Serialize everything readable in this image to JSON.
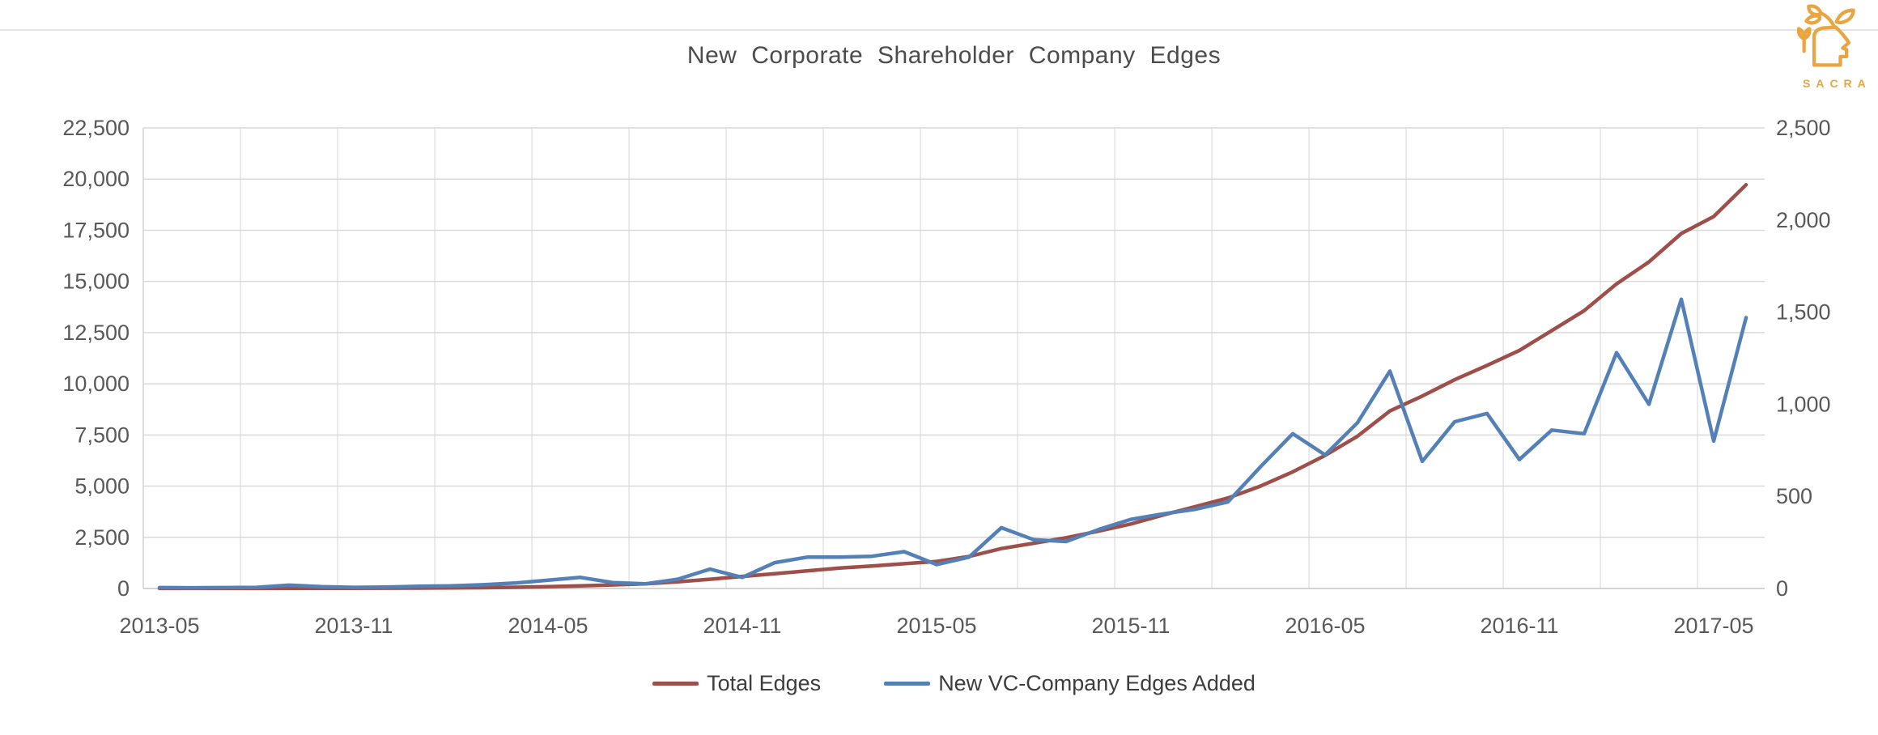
{
  "brand": {
    "name": "SACRA",
    "color": "#E9A540"
  },
  "chart_data": {
    "type": "line",
    "title": "New Corporate Shareholder Company Edges",
    "grid": true,
    "legend_position": "bottom",
    "categories": [
      "2013-05",
      "2013-06",
      "2013-07",
      "2013-08",
      "2013-09",
      "2013-10",
      "2013-11",
      "2013-12",
      "2014-01",
      "2014-02",
      "2014-03",
      "2014-04",
      "2014-05",
      "2014-06",
      "2014-07",
      "2014-08",
      "2014-09",
      "2014-10",
      "2014-11",
      "2014-12",
      "2015-01",
      "2015-02",
      "2015-03",
      "2015-04",
      "2015-05",
      "2015-06",
      "2015-07",
      "2015-08",
      "2015-09",
      "2015-10",
      "2015-11",
      "2015-12",
      "2016-01",
      "2016-02",
      "2016-03",
      "2016-04",
      "2016-05",
      "2016-06",
      "2016-07",
      "2016-08",
      "2016-09",
      "2016-10",
      "2016-11",
      "2016-12",
      "2017-01",
      "2017-02",
      "2017-03",
      "2017-04",
      "2017-05",
      "2017-06"
    ],
    "x_tick_labels": [
      "2013-05",
      "2013-11",
      "2014-05",
      "2014-11",
      "2015-05",
      "2015-11",
      "2016-05",
      "2016-11",
      "2017-05"
    ],
    "left_axis": {
      "min": 0,
      "max": 22500,
      "step": 2500,
      "tick_labels": [
        "0",
        "2,500",
        "5,000",
        "7,500",
        "10,000",
        "12,500",
        "15,000",
        "17,500",
        "20,000",
        "22,500"
      ]
    },
    "right_axis": {
      "min": 0,
      "max": 2500,
      "step": 500,
      "tick_labels": [
        "0",
        "500",
        "1,000",
        "1,500",
        "2,000",
        "2,500"
      ]
    },
    "series": [
      {
        "name": "Total Edges",
        "axis": "left",
        "color": "#9E4F4A",
        "values": [
          2,
          3,
          4,
          5,
          8,
          10,
          12,
          15,
          20,
          28,
          40,
          60,
          90,
          130,
          175,
          230,
          330,
          450,
          590,
          720,
          860,
          1000,
          1100,
          1210,
          1320,
          1560,
          1950,
          2210,
          2480,
          2800,
          3150,
          3590,
          4000,
          4420,
          5000,
          5700,
          6500,
          7440,
          8670,
          9400,
          10200,
          10900,
          11630,
          12600,
          13570,
          14880,
          15950,
          17340,
          18170,
          19720
        ]
      },
      {
        "name": "New VC-Company Edges Added",
        "axis": "right",
        "color": "#5480B8",
        "values": [
          5,
          4,
          5,
          6,
          18,
          10,
          6,
          8,
          12,
          14,
          20,
          30,
          45,
          60,
          32,
          25,
          50,
          105,
          60,
          140,
          170,
          170,
          175,
          200,
          130,
          170,
          330,
          265,
          255,
          320,
          375,
          405,
          430,
          470,
          660,
          840,
          725,
          900,
          1180,
          690,
          905,
          950,
          700,
          860,
          840,
          1280,
          1000,
          1570,
          800,
          1470
        ]
      }
    ]
  },
  "legend": {
    "items": [
      {
        "label": "Total Edges",
        "color": "#9E4F4A"
      },
      {
        "label": "New VC-Company Edges Added",
        "color": "#5480B8"
      }
    ]
  }
}
